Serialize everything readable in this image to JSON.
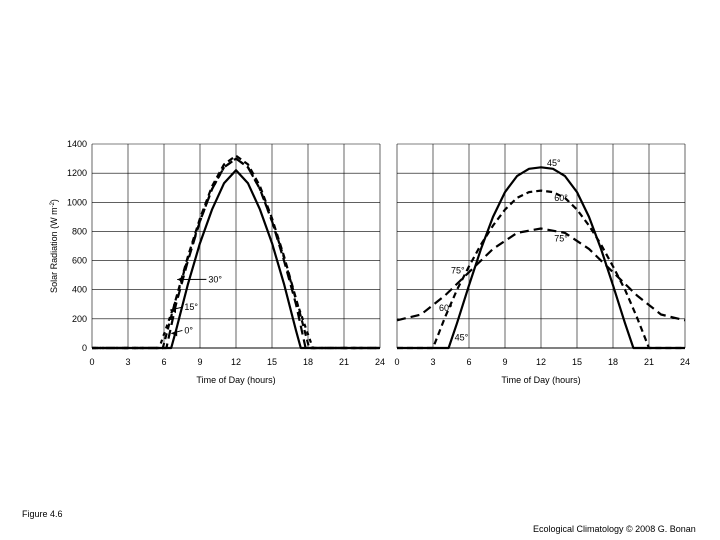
{
  "figure": {
    "label": "Figure 4.6",
    "credit": "Ecological Climatology © 2008 G. Bonan"
  },
  "chart_data": [
    {
      "type": "line",
      "panel": "left",
      "xlabel": "Time of Day (hours)",
      "ylabel": "Solar Radiation (W m",
      "ylabel_sup": "-2",
      "ylabel_close": ")",
      "xlim": [
        0,
        24
      ],
      "ylim": [
        0,
        1400
      ],
      "xticks": [
        0,
        3,
        6,
        9,
        12,
        15,
        18,
        21,
        24
      ],
      "yticks": [
        0,
        200,
        400,
        600,
        800,
        1000,
        1200,
        1400
      ],
      "grid": true,
      "series": [
        {
          "label": "45°",
          "style": "solid",
          "x": [
            0,
            6.6,
            7,
            8,
            9,
            10,
            11,
            12,
            13,
            14,
            15,
            16,
            17,
            17.4,
            24
          ],
          "y": [
            0,
            0,
            120,
            440,
            720,
            950,
            1130,
            1220,
            1130,
            950,
            720,
            440,
            120,
            0,
            0
          ]
        },
        {
          "label": "30°",
          "style": "long-dash",
          "x": [
            0,
            6.2,
            7,
            8,
            9,
            10,
            11,
            12,
            13,
            14,
            15,
            16,
            17,
            17.8,
            24
          ],
          "y": [
            0,
            0,
            300,
            600,
            870,
            1090,
            1240,
            1300,
            1240,
            1090,
            870,
            600,
            300,
            0,
            0
          ]
        },
        {
          "label": "15°",
          "style": "dash",
          "x": [
            0,
            5.9,
            7,
            8,
            9,
            10,
            11,
            12,
            13,
            14,
            15,
            16,
            17,
            18.1,
            24
          ],
          "y": [
            0,
            0,
            340,
            630,
            890,
            1110,
            1260,
            1320,
            1260,
            1110,
            890,
            630,
            340,
            0,
            0
          ]
        },
        {
          "label": "0°",
          "style": "short-dash",
          "x": [
            0,
            5.6,
            7,
            8,
            9,
            10,
            11,
            12,
            13,
            14,
            15,
            16,
            17,
            18.4,
            24
          ],
          "y": [
            0,
            0,
            330,
            620,
            870,
            1090,
            1240,
            1300,
            1240,
            1090,
            870,
            620,
            330,
            0,
            0
          ]
        }
      ],
      "annotations": [
        {
          "text": "30°",
          "x": 9.7,
          "y": 450,
          "arrow_to": [
            7.1,
            470
          ]
        },
        {
          "text": "15°",
          "x": 7.7,
          "y": 260,
          "arrow_to": [
            6.5,
            260
          ]
        },
        {
          "text": "0°",
          "x": 7.7,
          "y": 100,
          "arrow_to": [
            6.6,
            100
          ]
        }
      ]
    },
    {
      "type": "line",
      "panel": "right",
      "xlabel": "Time of Day (hours)",
      "xlim": [
        0,
        24
      ],
      "ylim": [
        0,
        1400
      ],
      "xticks": [
        0,
        3,
        6,
        9,
        12,
        15,
        18,
        21,
        24
      ],
      "grid": true,
      "series": [
        {
          "label": "45°",
          "style": "solid",
          "x": [
            0,
            4.3,
            5,
            6,
            7,
            8,
            9,
            10,
            11,
            12,
            13,
            14,
            15,
            16,
            17,
            18,
            19,
            19.7,
            24
          ],
          "y": [
            0,
            0,
            170,
            430,
            680,
            900,
            1070,
            1180,
            1230,
            1240,
            1230,
            1180,
            1070,
            900,
            680,
            430,
            170,
            0,
            0
          ]
        },
        {
          "label": "60°",
          "style": "dash",
          "x": [
            0,
            3,
            4,
            5,
            6,
            7,
            8,
            9,
            10,
            11,
            12,
            13,
            14,
            15,
            16,
            17,
            18,
            19,
            20,
            21,
            24
          ],
          "y": [
            0,
            0,
            210,
            400,
            560,
            710,
            840,
            950,
            1030,
            1070,
            1080,
            1070,
            1030,
            950,
            840,
            710,
            560,
            400,
            210,
            0,
            0
          ]
        },
        {
          "label": "75°",
          "style": "long-dash",
          "x": [
            0,
            2,
            4,
            6,
            8,
            10,
            12,
            14,
            16,
            18,
            20,
            22,
            24
          ],
          "y": [
            190,
            230,
            360,
            520,
            680,
            790,
            820,
            790,
            680,
            520,
            360,
            230,
            190
          ]
        }
      ],
      "annotations": [
        {
          "text": "45°",
          "x": 12.5,
          "y": 1250
        },
        {
          "text": "60°",
          "x": 13.1,
          "y": 1010
        },
        {
          "text": "75°",
          "x": 13.1,
          "y": 730
        },
        {
          "text": "75°",
          "x": 4.5,
          "y": 510
        },
        {
          "text": "60°",
          "x": 3.5,
          "y": 255
        },
        {
          "text": "45°",
          "x": 4.8,
          "y": 50
        }
      ]
    }
  ]
}
